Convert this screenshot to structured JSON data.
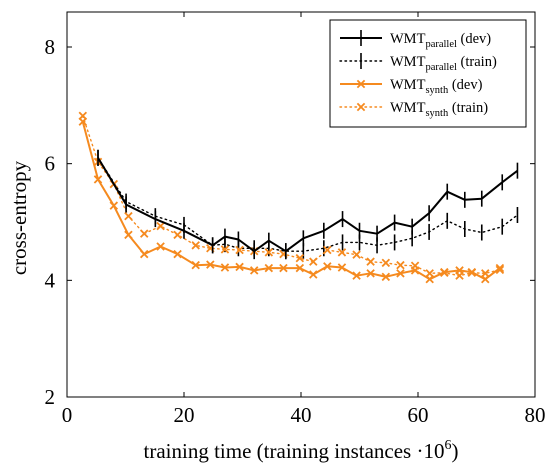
{
  "chart_data": {
    "type": "line",
    "title": "",
    "xlabel_main": "training time (training instances ·10",
    "xlabel_sup": "6",
    "xlabel_close": ")",
    "ylabel": "cross-entropy",
    "xlim": [
      0,
      80
    ],
    "ylim": [
      2,
      8.6
    ],
    "xticks": [
      "0",
      "20",
      "40",
      "60",
      "80"
    ],
    "xtick_values": [
      0,
      20,
      40,
      60,
      80
    ],
    "yticks": [
      "2",
      "4",
      "6",
      "8"
    ],
    "ytick_values": [
      2,
      4,
      6,
      8
    ],
    "grid": false,
    "legend_position": "top-right",
    "series": [
      {
        "name": "WMT",
        "subscript": "parallel",
        "suffix": " (dev)",
        "color": "#000000",
        "dash": "solid",
        "marker": "bar",
        "x": [
          5.3,
          10.1,
          15.1,
          20.0,
          24.9,
          27.0,
          29.3,
          32.0,
          34.5,
          37.4,
          40.4,
          43.9,
          47.1,
          50.0,
          53.0,
          56.0,
          59.0,
          61.9,
          65.0,
          68.0,
          70.9,
          74.4,
          77.0
        ],
        "y": [
          6.1,
          5.3,
          5.05,
          4.85,
          4.6,
          4.75,
          4.7,
          4.5,
          4.68,
          4.5,
          4.72,
          4.85,
          5.05,
          4.85,
          4.8,
          4.99,
          4.92,
          5.15,
          5.52,
          5.38,
          5.4,
          5.68,
          5.88
        ]
      },
      {
        "name": "WMT",
        "subscript": "parallel",
        "suffix": " (train)",
        "color": "#000000",
        "dash": "dotted",
        "marker": "bar",
        "x": [
          5.3,
          10.1,
          15.1,
          20.0,
          24.9,
          27.0,
          29.3,
          32.0,
          34.5,
          37.4,
          40.4,
          43.9,
          47.1,
          50.0,
          53.0,
          56.0,
          59.0,
          61.9,
          65.0,
          68.0,
          70.9,
          74.4,
          77.0
        ],
        "y": [
          6.1,
          5.35,
          5.1,
          4.95,
          4.6,
          4.62,
          4.55,
          4.55,
          4.55,
          4.5,
          4.5,
          4.55,
          4.65,
          4.65,
          4.6,
          4.65,
          4.72,
          4.83,
          5.02,
          4.88,
          4.82,
          4.92,
          5.12
        ]
      },
      {
        "name": "WMT",
        "subscript": "synth",
        "suffix": " (dev)",
        "color": "#f58a1f",
        "dash": "solid",
        "marker": "x",
        "x": [
          2.7,
          5.3,
          8.0,
          10.5,
          13.2,
          16.0,
          18.9,
          22.0,
          24.5,
          27.0,
          29.5,
          32.0,
          34.5,
          37.0,
          39.8,
          42.1,
          44.5,
          47.0,
          49.5,
          51.9,
          54.5,
          57.0,
          59.5,
          62.0,
          64.5,
          67.1,
          69.2,
          71.5,
          74.0
        ],
        "y": [
          6.72,
          5.73,
          5.28,
          4.78,
          4.45,
          4.58,
          4.45,
          4.26,
          4.27,
          4.22,
          4.23,
          4.17,
          4.21,
          4.21,
          4.21,
          4.1,
          4.24,
          4.22,
          4.08,
          4.12,
          4.06,
          4.12,
          4.17,
          4.02,
          4.14,
          4.17,
          4.14,
          4.02,
          4.21
        ]
      },
      {
        "name": "WMT",
        "subscript": "synth",
        "suffix": " (train)",
        "color": "#f58a1f",
        "dash": "dotted",
        "marker": "x",
        "x": [
          2.7,
          5.3,
          8.0,
          10.5,
          13.2,
          16.0,
          18.9,
          22.0,
          24.5,
          27.0,
          29.5,
          32.0,
          34.5,
          37.0,
          39.8,
          42.1,
          44.5,
          47.0,
          49.5,
          51.9,
          54.5,
          57.0,
          59.5,
          62.0,
          64.5,
          67.1,
          69.2,
          71.5,
          74.0
        ],
        "y": [
          6.82,
          6.03,
          5.65,
          5.1,
          4.8,
          4.93,
          4.78,
          4.6,
          4.55,
          4.53,
          4.52,
          4.5,
          4.48,
          4.45,
          4.38,
          4.32,
          4.52,
          4.48,
          4.44,
          4.32,
          4.3,
          4.26,
          4.25,
          4.12,
          4.13,
          4.08,
          4.13,
          4.12,
          4.18
        ]
      }
    ]
  }
}
